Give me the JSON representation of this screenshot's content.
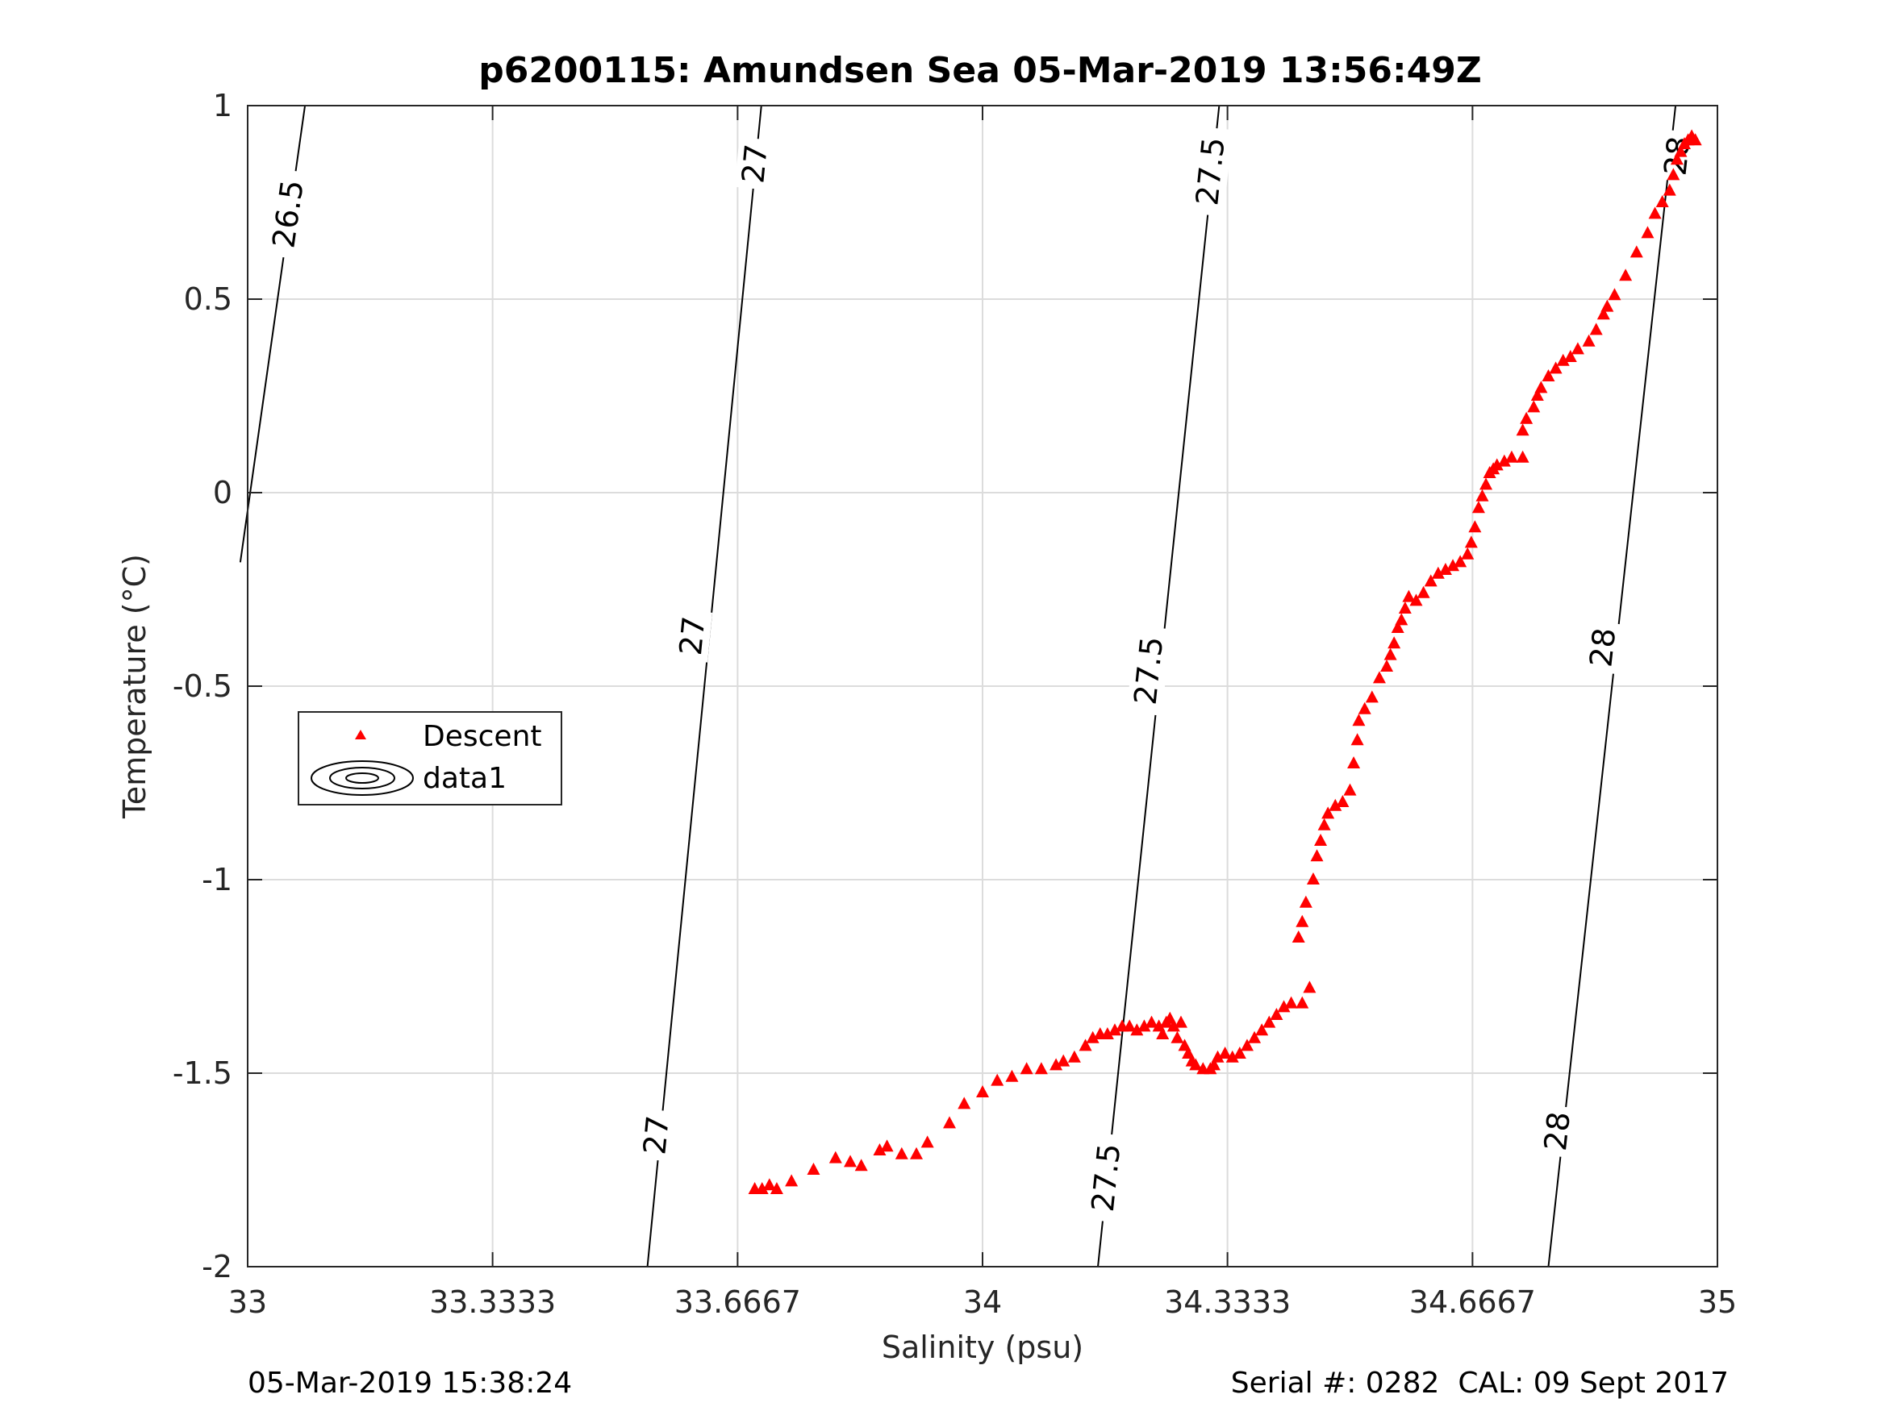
{
  "title": "p6200115: Amundsen Sea 05-Mar-2019 13:56:49Z",
  "footer": {
    "timestamp": "05-Mar-2019 15:38:24",
    "serial_cal": "Serial #: 0282  CAL: 09 Sept 2017"
  },
  "colors": {
    "descent": "#ff0000",
    "contour": "#000000",
    "grid": "#dcdcdc",
    "axis": "#262626"
  },
  "chart_data": {
    "type": "scatter",
    "title": "p6200115: Amundsen Sea 05-Mar-2019 13:56:49Z",
    "xlabel": "Salinity (psu)",
    "ylabel": "Temperature (°C)",
    "xlim": [
      33,
      35
    ],
    "ylim": [
      -2,
      1
    ],
    "xticks": [
      33,
      33.3333,
      33.6667,
      34,
      34.3333,
      34.6667,
      35
    ],
    "xtick_labels": [
      "33",
      "33.3333",
      "33.6667",
      "34",
      "34.3333",
      "34.6667",
      "35"
    ],
    "yticks": [
      1,
      0.5,
      0,
      -0.5,
      -1,
      -1.5,
      -2
    ],
    "ytick_labels": [
      "1",
      "0.5",
      "0",
      "-0.5",
      "-1",
      "-1.5",
      "-2"
    ],
    "grid": true,
    "legend": {
      "placement": "west",
      "entries": [
        "Descent",
        "data1"
      ]
    },
    "series": [
      {
        "name": "Descent",
        "marker": "triangle",
        "points": [
          [
            33.69,
            -1.8
          ],
          [
            33.7,
            -1.8
          ],
          [
            33.71,
            -1.79
          ],
          [
            33.72,
            -1.8
          ],
          [
            33.74,
            -1.78
          ],
          [
            33.77,
            -1.75
          ],
          [
            33.8,
            -1.72
          ],
          [
            33.82,
            -1.73
          ],
          [
            33.835,
            -1.74
          ],
          [
            33.86,
            -1.7
          ],
          [
            33.87,
            -1.69
          ],
          [
            33.89,
            -1.71
          ],
          [
            33.91,
            -1.71
          ],
          [
            33.925,
            -1.68
          ],
          [
            33.955,
            -1.63
          ],
          [
            33.975,
            -1.58
          ],
          [
            34.0,
            -1.55
          ],
          [
            34.02,
            -1.52
          ],
          [
            34.04,
            -1.51
          ],
          [
            34.06,
            -1.49
          ],
          [
            34.08,
            -1.49
          ],
          [
            34.1,
            -1.48
          ],
          [
            34.11,
            -1.47
          ],
          [
            34.125,
            -1.46
          ],
          [
            34.14,
            -1.43
          ],
          [
            34.15,
            -1.41
          ],
          [
            34.16,
            -1.4
          ],
          [
            34.17,
            -1.4
          ],
          [
            34.18,
            -1.39
          ],
          [
            34.19,
            -1.38
          ],
          [
            34.2,
            -1.38
          ],
          [
            34.21,
            -1.39
          ],
          [
            34.22,
            -1.38
          ],
          [
            34.23,
            -1.37
          ],
          [
            34.24,
            -1.38
          ],
          [
            34.245,
            -1.4
          ],
          [
            34.25,
            -1.37
          ],
          [
            34.255,
            -1.36
          ],
          [
            34.26,
            -1.38
          ],
          [
            34.265,
            -1.41
          ],
          [
            34.27,
            -1.37
          ],
          [
            34.275,
            -1.43
          ],
          [
            34.28,
            -1.45
          ],
          [
            34.285,
            -1.47
          ],
          [
            34.29,
            -1.48
          ],
          [
            34.3,
            -1.49
          ],
          [
            34.31,
            -1.49
          ],
          [
            34.315,
            -1.48
          ],
          [
            34.32,
            -1.46
          ],
          [
            34.33,
            -1.45
          ],
          [
            34.34,
            -1.46
          ],
          [
            34.35,
            -1.45
          ],
          [
            34.36,
            -1.43
          ],
          [
            34.37,
            -1.41
          ],
          [
            34.38,
            -1.39
          ],
          [
            34.39,
            -1.37
          ],
          [
            34.4,
            -1.35
          ],
          [
            34.41,
            -1.33
          ],
          [
            34.42,
            -1.32
          ],
          [
            34.435,
            -1.32
          ],
          [
            34.445,
            -1.28
          ],
          [
            34.43,
            -1.15
          ],
          [
            34.435,
            -1.11
          ],
          [
            34.44,
            -1.06
          ],
          [
            34.45,
            -1.0
          ],
          [
            34.455,
            -0.94
          ],
          [
            34.46,
            -0.9
          ],
          [
            34.465,
            -0.86
          ],
          [
            34.47,
            -0.83
          ],
          [
            34.48,
            -0.81
          ],
          [
            34.49,
            -0.8
          ],
          [
            34.5,
            -0.77
          ],
          [
            34.505,
            -0.7
          ],
          [
            34.51,
            -0.64
          ],
          [
            34.512,
            -0.59
          ],
          [
            34.52,
            -0.56
          ],
          [
            34.53,
            -0.53
          ],
          [
            34.54,
            -0.48
          ],
          [
            34.55,
            -0.45
          ],
          [
            34.555,
            -0.42
          ],
          [
            34.56,
            -0.39
          ],
          [
            34.565,
            -0.35
          ],
          [
            34.57,
            -0.33
          ],
          [
            34.575,
            -0.3
          ],
          [
            34.58,
            -0.27
          ],
          [
            34.59,
            -0.28
          ],
          [
            34.6,
            -0.26
          ],
          [
            34.61,
            -0.23
          ],
          [
            34.62,
            -0.21
          ],
          [
            34.63,
            -0.2
          ],
          [
            34.64,
            -0.19
          ],
          [
            34.65,
            -0.18
          ],
          [
            34.66,
            -0.16
          ],
          [
            34.665,
            -0.13
          ],
          [
            34.67,
            -0.09
          ],
          [
            34.675,
            -0.04
          ],
          [
            34.68,
            -0.01
          ],
          [
            34.685,
            0.02
          ],
          [
            34.69,
            0.05
          ],
          [
            34.695,
            0.06
          ],
          [
            34.7,
            0.07
          ],
          [
            34.71,
            0.08
          ],
          [
            34.72,
            0.09
          ],
          [
            34.735,
            0.09
          ],
          [
            34.735,
            0.16
          ],
          [
            34.74,
            0.19
          ],
          [
            34.75,
            0.22
          ],
          [
            34.755,
            0.25
          ],
          [
            34.76,
            0.27
          ],
          [
            34.77,
            0.3
          ],
          [
            34.78,
            0.32
          ],
          [
            34.79,
            0.34
          ],
          [
            34.8,
            0.35
          ],
          [
            34.81,
            0.37
          ],
          [
            34.825,
            0.39
          ],
          [
            34.835,
            0.42
          ],
          [
            34.845,
            0.46
          ],
          [
            34.85,
            0.48
          ],
          [
            34.86,
            0.51
          ],
          [
            34.875,
            0.56
          ],
          [
            34.89,
            0.62
          ],
          [
            34.905,
            0.67
          ],
          [
            34.915,
            0.72
          ],
          [
            34.925,
            0.75
          ],
          [
            34.935,
            0.78
          ],
          [
            34.94,
            0.82
          ],
          [
            34.945,
            0.86
          ],
          [
            34.95,
            0.88
          ],
          [
            34.955,
            0.9
          ],
          [
            34.96,
            0.91
          ],
          [
            34.965,
            0.92
          ],
          [
            34.97,
            0.91
          ]
        ]
      }
    ],
    "contours": {
      "name": "data1",
      "description_levels": [
        26.5,
        27,
        27.5,
        28
      ],
      "lines": [
        {
          "level": 26.5,
          "bottom": [
            32.99,
            -0.18
          ],
          "top": [
            33.078,
            1
          ]
        },
        {
          "level": 27,
          "bottom": [
            33.544,
            -2
          ],
          "top": [
            33.699,
            1
          ]
        },
        {
          "level": 27.5,
          "bottom": [
            34.157,
            -2
          ],
          "top": [
            34.322,
            1
          ]
        },
        {
          "level": 28,
          "bottom": [
            34.77,
            -2
          ],
          "top": [
            34.943,
            1
          ]
        }
      ],
      "labels": [
        {
          "text": "26.5",
          "at": [
            33.055,
            0.72
          ]
        },
        {
          "text": "27",
          "at": [
            33.69,
            0.85
          ]
        },
        {
          "text": "27",
          "at": [
            33.605,
            -0.37
          ]
        },
        {
          "text": "27",
          "at": [
            33.556,
            -1.66
          ]
        },
        {
          "text": "27.5",
          "at": [
            34.31,
            0.83
          ]
        },
        {
          "text": "27.5",
          "at": [
            34.226,
            -0.46
          ]
        },
        {
          "text": "27.5",
          "at": [
            34.168,
            -1.77
          ]
        },
        {
          "text": "28",
          "at": [
            34.945,
            0.87
          ]
        },
        {
          "text": "28",
          "at": [
            34.844,
            -0.4
          ]
        },
        {
          "text": "28",
          "at": [
            34.782,
            -1.65
          ]
        }
      ]
    }
  }
}
